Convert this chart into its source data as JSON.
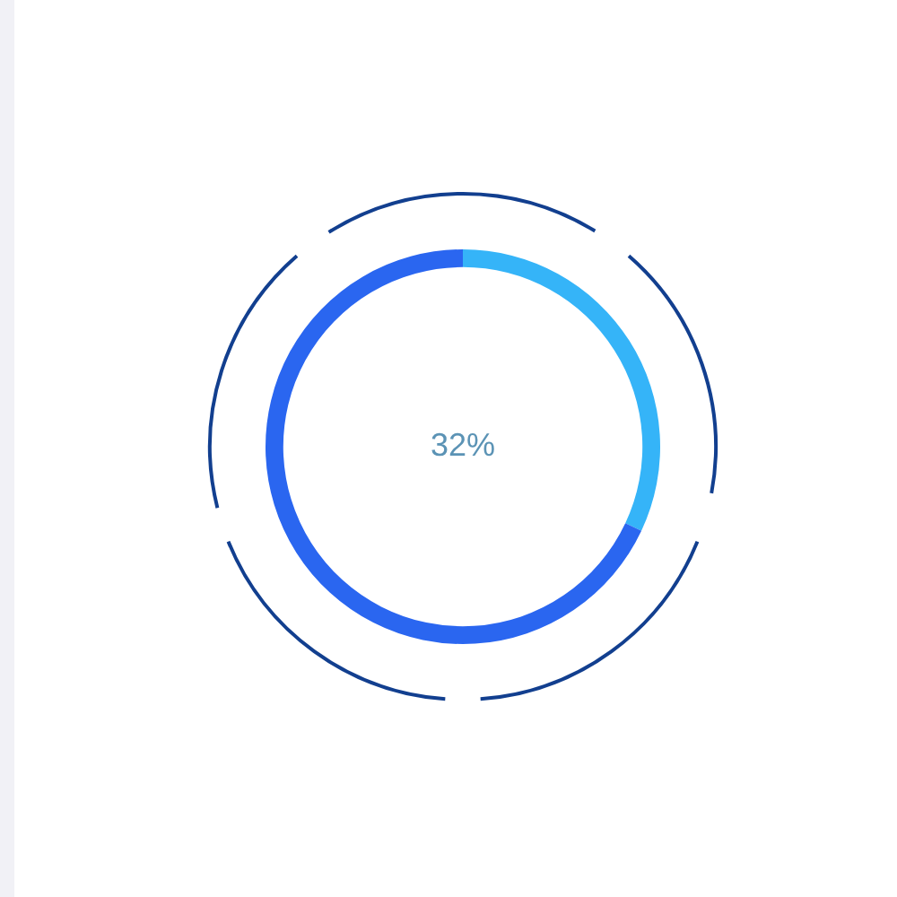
{
  "chart_data": {
    "type": "donut",
    "categories": [
      null,
      null
    ],
    "values": [
      32,
      68
    ],
    "colors": [
      "#35b4f8",
      "#2a66f0"
    ],
    "annotations": [
      "32%"
    ],
    "legend": false
  }
}
